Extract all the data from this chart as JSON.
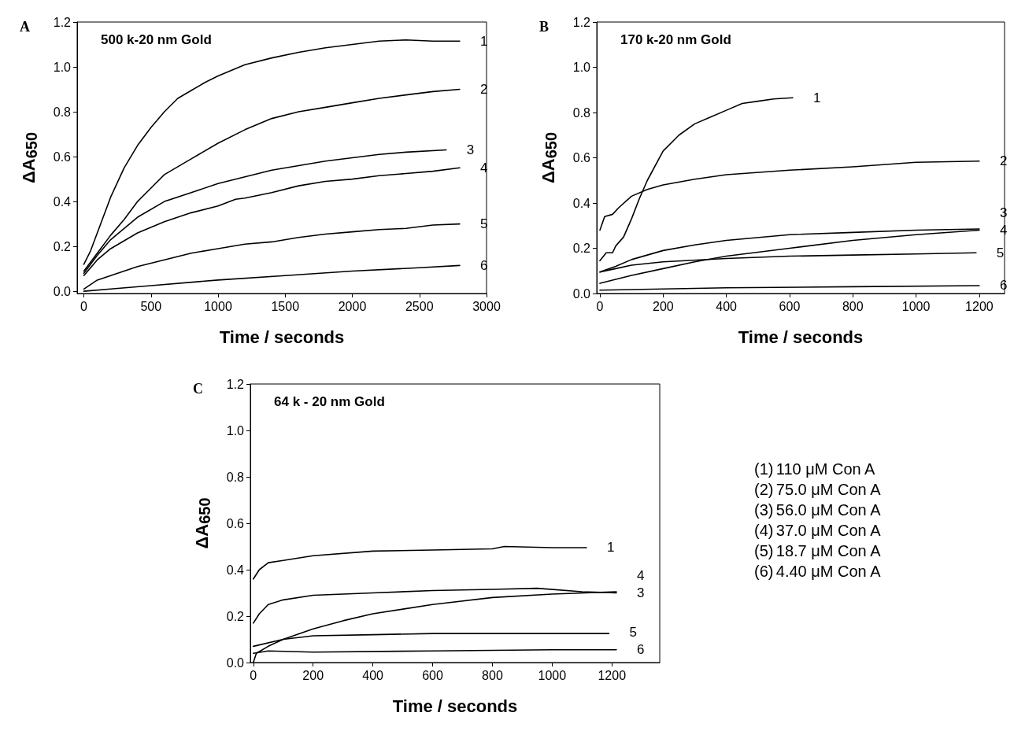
{
  "chart_data": [
    {
      "type": "line",
      "title": "A",
      "subtitle": "500 k-20 nm Gold",
      "xlabel": "Time / seconds",
      "ylabel": "ΔA$_{650}$",
      "xlim": [
        -50,
        3000
      ],
      "xticks": [
        0,
        500,
        1000,
        1500,
        2000,
        2500,
        3000
      ],
      "ylim": [
        -0.01,
        1.2
      ],
      "yticks": [
        {
          "value": 0,
          "label": "0.0"
        },
        {
          "value": 0.2,
          "label": "0.2"
        },
        {
          "value": 0.4,
          "label": "0.4"
        },
        {
          "value": 0.6,
          "label": "0.6"
        },
        {
          "value": 0.8,
          "label": "0.8"
        },
        {
          "value": 1,
          "label": "1.0"
        },
        {
          "value": 1.2,
          "label": "1.2"
        }
      ],
      "grid": false,
      "legend": false,
      "marker": "none",
      "line_style": "solid",
      "series": [
        {
          "name": "1",
          "color": "#000000",
          "x": [
            0,
            50,
            100,
            200,
            300,
            400,
            500,
            600,
            700,
            800,
            900,
            1000,
            1200,
            1400,
            1600,
            1800,
            2000,
            2200,
            2400,
            2600,
            2800
          ],
          "values": [
            0.12,
            0.18,
            0.26,
            0.42,
            0.55,
            0.65,
            0.73,
            0.8,
            0.86,
            0.895,
            0.93,
            0.96,
            1.01,
            1.04,
            1.065,
            1.085,
            1.1,
            1.115,
            1.12,
            1.115,
            1.115
          ]
        },
        {
          "name": "2",
          "color": "#000000",
          "x": [
            0,
            100,
            200,
            300,
            400,
            500,
            600,
            800,
            1000,
            1200,
            1400,
            1600,
            1800,
            2000,
            2200,
            2400,
            2600,
            2800
          ],
          "values": [
            0.09,
            0.17,
            0.25,
            0.32,
            0.4,
            0.46,
            0.52,
            0.59,
            0.66,
            0.72,
            0.77,
            0.8,
            0.82,
            0.84,
            0.86,
            0.875,
            0.89,
            0.9
          ]
        },
        {
          "name": "3",
          "color": "#000000",
          "x": [
            0,
            100,
            200,
            400,
            600,
            800,
            1000,
            1200,
            1400,
            1600,
            1800,
            2000,
            2200,
            2400,
            2700
          ],
          "values": [
            0.08,
            0.16,
            0.23,
            0.33,
            0.4,
            0.44,
            0.48,
            0.51,
            0.54,
            0.56,
            0.58,
            0.595,
            0.61,
            0.62,
            0.63
          ]
        },
        {
          "name": "4",
          "color": "#000000",
          "x": [
            0,
            100,
            200,
            400,
            600,
            800,
            1000,
            1130,
            1200,
            1400,
            1600,
            1800,
            2000,
            2200,
            2400,
            2600,
            2800
          ],
          "values": [
            0.07,
            0.14,
            0.19,
            0.26,
            0.31,
            0.35,
            0.38,
            0.41,
            0.415,
            0.44,
            0.47,
            0.49,
            0.5,
            0.515,
            0.525,
            0.535,
            0.55
          ]
        },
        {
          "name": "5",
          "color": "#000000",
          "x": [
            0,
            100,
            200,
            300,
            400,
            600,
            800,
            1000,
            1200,
            1400,
            1600,
            1800,
            2000,
            2200,
            2400,
            2600,
            2800
          ],
          "values": [
            0.01,
            0.05,
            0.07,
            0.09,
            0.11,
            0.14,
            0.17,
            0.19,
            0.21,
            0.22,
            0.24,
            0.255,
            0.265,
            0.275,
            0.28,
            0.295,
            0.3
          ]
        },
        {
          "name": "6",
          "color": "#000000",
          "x": [
            0,
            200,
            500,
            1000,
            1500,
            2000,
            2500,
            2800
          ],
          "values": [
            0,
            0.01,
            0.025,
            0.05,
            0.07,
            0.09,
            0.105,
            0.115
          ]
        }
      ]
    },
    {
      "type": "line",
      "title": "B",
      "subtitle": "170 k-20 nm Gold",
      "xlabel": "Time / seconds",
      "ylabel": "ΔA$_{650}$",
      "xlim": [
        -10,
        1280
      ],
      "xticks": [
        0,
        200,
        400,
        600,
        800,
        1000,
        1200
      ],
      "ylim": [
        0,
        1.2
      ],
      "yticks": [
        {
          "value": 0,
          "label": "0.0"
        },
        {
          "value": 0.2,
          "label": "0.2"
        },
        {
          "value": 0.4,
          "label": "0.4"
        },
        {
          "value": 0.6,
          "label": "0.6"
        },
        {
          "value": 0.8,
          "label": "0.8"
        },
        {
          "value": 1,
          "label": "1.0"
        },
        {
          "value": 1.2,
          "label": "1.2"
        }
      ],
      "grid": false,
      "legend": false,
      "marker": "none",
      "line_style": "solid",
      "series": [
        {
          "name": "1",
          "color": "#000000",
          "x": [
            0,
            20,
            40,
            50,
            75,
            100,
            125,
            150,
            200,
            250,
            300,
            350,
            400,
            450,
            500,
            550,
            610
          ],
          "values": [
            0.145,
            0.18,
            0.18,
            0.21,
            0.25,
            0.33,
            0.42,
            0.5,
            0.63,
            0.7,
            0.75,
            0.78,
            0.81,
            0.84,
            0.85,
            0.86,
            0.865
          ]
        },
        {
          "name": "2",
          "color": "#000000",
          "x": [
            0,
            15,
            40,
            60,
            100,
            150,
            200,
            300,
            400,
            600,
            800,
            1000,
            1200
          ],
          "values": [
            0.28,
            0.34,
            0.35,
            0.38,
            0.43,
            0.46,
            0.48,
            0.505,
            0.525,
            0.545,
            0.56,
            0.58,
            0.585
          ]
        },
        {
          "name": "3",
          "color": "#000000",
          "x": [
            0,
            50,
            100,
            200,
            300,
            400,
            600,
            800,
            1000,
            1200
          ],
          "values": [
            0.095,
            0.12,
            0.15,
            0.19,
            0.215,
            0.235,
            0.26,
            0.27,
            0.28,
            0.285
          ]
        },
        {
          "name": "4",
          "color": "#000000",
          "x": [
            0,
            100,
            200,
            300,
            400,
            600,
            800,
            1000,
            1200
          ],
          "values": [
            0.045,
            0.08,
            0.11,
            0.14,
            0.165,
            0.2,
            0.235,
            0.26,
            0.28
          ]
        },
        {
          "name": "5",
          "color": "#000000",
          "x": [
            0,
            50,
            100,
            200,
            400,
            600,
            800,
            1000,
            1190
          ],
          "values": [
            0.095,
            0.11,
            0.125,
            0.14,
            0.155,
            0.165,
            0.17,
            0.175,
            0.18
          ]
        },
        {
          "name": "6",
          "color": "#000000",
          "x": [
            0,
            200,
            400,
            800,
            1200
          ],
          "values": [
            0.015,
            0.02,
            0.025,
            0.03,
            0.035
          ]
        }
      ]
    },
    {
      "type": "line",
      "title": "C",
      "subtitle": "64 k - 20 nm Gold",
      "xlabel": "Time / seconds",
      "ylabel": "ΔA$_{650}$",
      "xlim": [
        -10,
        1360
      ],
      "xticks": [
        0,
        200,
        400,
        600,
        800,
        1000,
        1200
      ],
      "ylim": [
        0,
        1.2
      ],
      "yticks": [
        {
          "value": 0,
          "label": "0.0"
        },
        {
          "value": 0.2,
          "label": "0.2"
        },
        {
          "value": 0.4,
          "label": "0.4"
        },
        {
          "value": 0.6,
          "label": "0.6"
        },
        {
          "value": 0.8,
          "label": "0.8"
        },
        {
          "value": 1,
          "label": "1.0"
        },
        {
          "value": 1.2,
          "label": "1.2"
        }
      ],
      "grid": false,
      "legend": false,
      "marker": "none",
      "line_style": "solid",
      "series": [
        {
          "name": "1",
          "color": "#000000",
          "x": [
            0,
            20,
            50,
            100,
            200,
            400,
            600,
            800,
            840,
            1000,
            1115
          ],
          "values": [
            0.36,
            0.4,
            0.43,
            0.44,
            0.46,
            0.48,
            0.485,
            0.49,
            0.5,
            0.495,
            0.495
          ]
        },
        {
          "name": "3",
          "color": "#000000",
          "x": [
            0,
            20,
            50,
            100,
            200,
            400,
            600,
            800,
            950,
            1100,
            1215
          ],
          "values": [
            0.17,
            0.21,
            0.25,
            0.27,
            0.29,
            0.3,
            0.31,
            0.315,
            0.32,
            0.305,
            0.3
          ]
        },
        {
          "name": "4",
          "color": "#000000",
          "x": [
            0,
            10,
            50,
            100,
            200,
            300,
            400,
            500,
            600,
            800,
            1000,
            1215
          ],
          "values": [
            0,
            0.04,
            0.07,
            0.1,
            0.145,
            0.18,
            0.21,
            0.23,
            0.25,
            0.28,
            0.295,
            0.305
          ]
        },
        {
          "name": "5",
          "color": "#000000",
          "x": [
            0,
            100,
            200,
            400,
            600,
            800,
            1190
          ],
          "values": [
            0.07,
            0.1,
            0.115,
            0.12,
            0.125,
            0.125,
            0.125
          ]
        },
        {
          "name": "6",
          "color": "#000000",
          "x": [
            0,
            50,
            200,
            600,
            1000,
            1215
          ],
          "values": [
            0.04,
            0.05,
            0.045,
            0.05,
            0.055,
            0.055
          ]
        }
      ]
    },
    {
      "type": "other",
      "annotations": [
        "(1)\t110 μM Con A",
        "(2)\t75.0 μM Con A",
        "(3)\t56.0 μM Con A",
        "(4)\t37.0 μM Con A",
        "(5)\t18.7 μM Con A",
        "(6)\t4.40 μM Con A"
      ]
    }
  ]
}
